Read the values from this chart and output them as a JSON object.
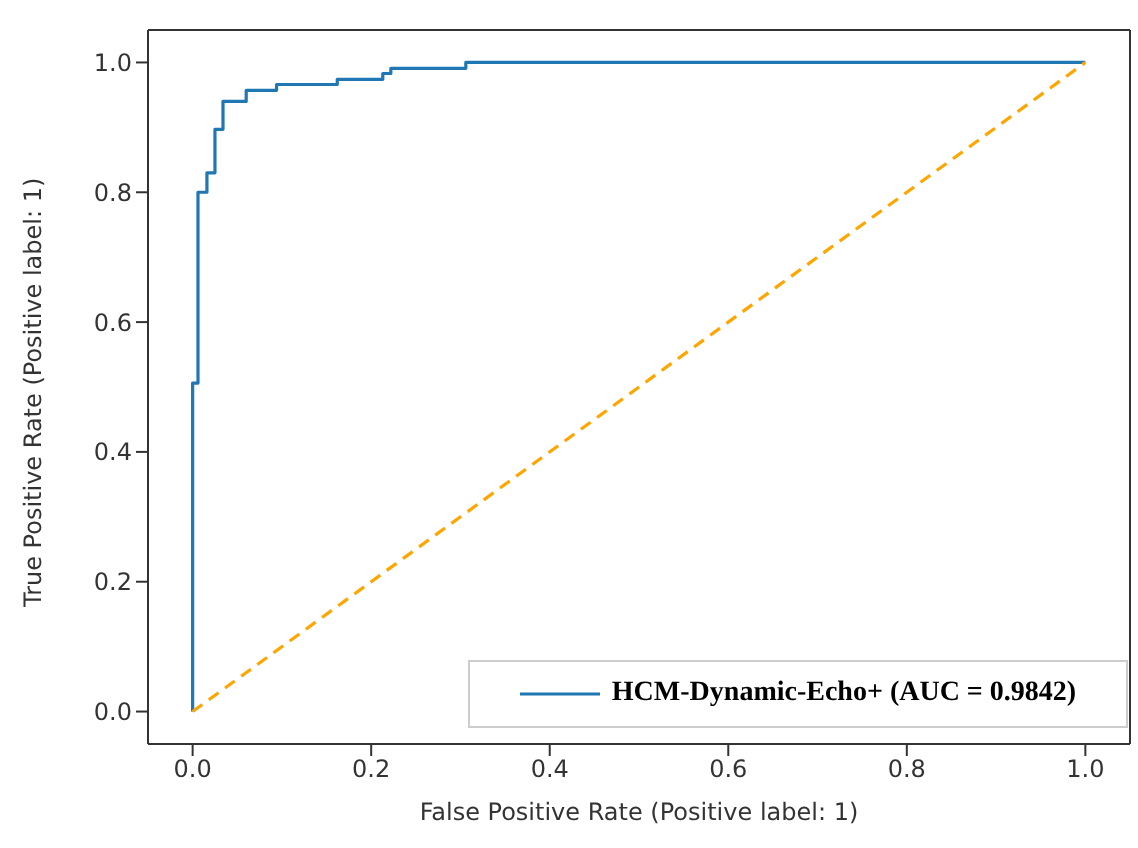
{
  "chart_data": {
    "type": "line",
    "xlabel": "False Positive Rate (Positive label: 1)",
    "ylabel": "True Positive Rate (Positive label: 1)",
    "xlim": [
      -0.05,
      1.05
    ],
    "ylim": [
      -0.05,
      1.05
    ],
    "xticks": [
      {
        "value": 0,
        "label": "0.0"
      },
      0.2,
      0.4,
      0.6,
      0.8,
      {
        "value": 1,
        "label": "1.0"
      }
    ],
    "yticks": [
      {
        "value": 0,
        "label": "0.0"
      },
      0.2,
      0.4,
      0.6,
      0.8,
      {
        "value": 1,
        "label": "1.0"
      }
    ],
    "legend": "bottom right",
    "marker": "none",
    "series": [
      {
        "name": "HCM-Dynamic-Echo+ (AUC = 0.9842)",
        "color": "#1f77b4",
        "line_style": "solid",
        "x": [
          0,
          0,
          0.006,
          0.006,
          0.016,
          0.016,
          0.025,
          0.025,
          0.034,
          0.034,
          0.06,
          0.06,
          0.094,
          0.094,
          0.162,
          0.162,
          0.213,
          0.213,
          0.222,
          0.222,
          0.306,
          0.306,
          1
        ],
        "values": [
          0,
          0.506,
          0.506,
          0.8,
          0.8,
          0.83,
          0.83,
          0.897,
          0.897,
          0.94,
          0.94,
          0.957,
          0.957,
          0.966,
          0.966,
          0.974,
          0.974,
          0.983,
          0.983,
          0.991,
          0.991,
          1,
          1
        ]
      },
      {
        "color": "#ffa500",
        "line_style": "dashed",
        "x": [
          0,
          1
        ],
        "values": [
          0,
          1
        ]
      }
    ]
  }
}
